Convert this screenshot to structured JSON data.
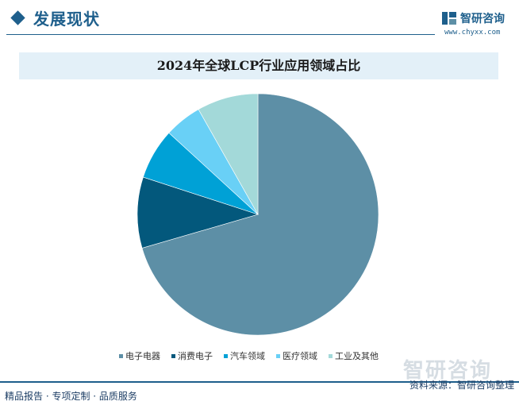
{
  "header": {
    "section_title": "发展现状",
    "brand_name": "智研咨询",
    "brand_url": "www.chyxx.com"
  },
  "watermark": {
    "text": "智研咨询"
  },
  "footer": {
    "left_text": "精品报告 · 专项定制 · 品质服务",
    "right_text": "资料来源：智研咨询整理"
  },
  "colors": {
    "accent": "#1e5f8c"
  },
  "chart_data": {
    "type": "pie",
    "title": "2024年全球LCP行业应用领域占比",
    "legend_position": "bottom",
    "start_angle_deg": 0,
    "direction": "clockwise",
    "slices": [
      {
        "label": "电子电器",
        "value": 70.5,
        "color": "#5d8fa6"
      },
      {
        "label": "消费电子",
        "value": 9.5,
        "color": "#03587c"
      },
      {
        "label": "汽车领域",
        "value": 6.8,
        "color": "#00a1d6"
      },
      {
        "label": "医疗领域",
        "value": 5.0,
        "color": "#69d0f6"
      },
      {
        "label": "工业及其他",
        "value": 8.2,
        "color": "#a3d9d9"
      }
    ]
  }
}
